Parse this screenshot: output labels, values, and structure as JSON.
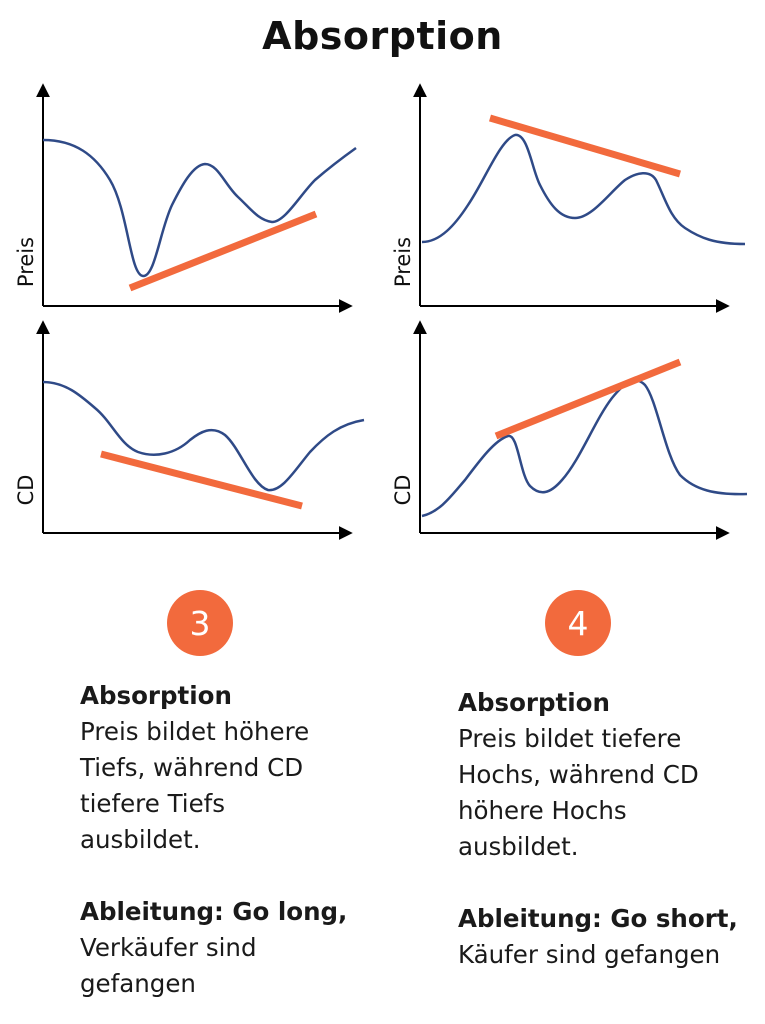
{
  "title": "Absorption",
  "colors": {
    "curve": "#2f4a87",
    "trendline": "#f26a3d",
    "badge": "#f26a3d",
    "axis": "#000000"
  },
  "panels": [
    {
      "id": "3-price",
      "y_label": "Preis",
      "curve": "lower low then higher lows",
      "trendline": "rising"
    },
    {
      "id": "3-cd",
      "y_label": "CD",
      "curve": "lower lows",
      "trendline": "falling"
    },
    {
      "id": "4-price",
      "y_label": "Preis",
      "curve": "higher high then lower highs",
      "trendline": "falling"
    },
    {
      "id": "4-cd",
      "y_label": "CD",
      "curve": "higher highs",
      "trendline": "rising"
    }
  ],
  "cases": [
    {
      "number": "3",
      "heading": "Absorption",
      "line1": "Preis bildet höhere",
      "line2": "Tiefs, während CD",
      "line3": "tiefere Tiefs",
      "line4": "ausbildet.",
      "action_heading": "Ableitung: Go long,",
      "action_line1": "Verkäufer sind",
      "action_line2": "gefangen"
    },
    {
      "number": "4",
      "heading": "Absorption",
      "line1": "Preis bildet tiefere",
      "line2": "Hochs, während CD",
      "line3": "höhere Hochs",
      "line4": "ausbildet.",
      "action_heading": "Ableitung: Go short,",
      "action_line1": "Käufer sind gefangen",
      "action_line2": ""
    }
  ]
}
